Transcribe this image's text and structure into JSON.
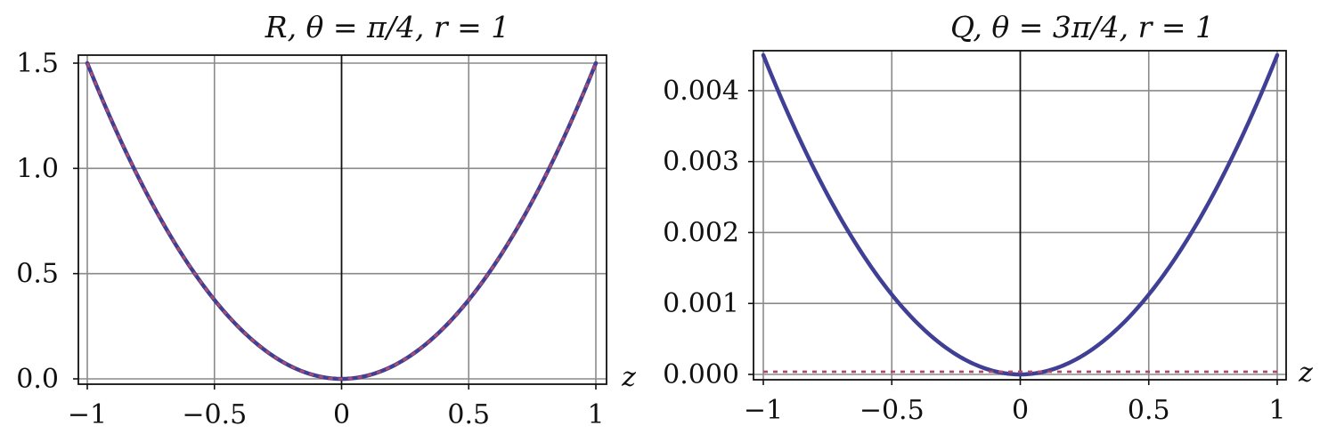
{
  "chart_data": [
    {
      "type": "line",
      "title": "R, θ = π/4, r = 1",
      "xlabel": "z",
      "ylabel": "",
      "xlim": [
        -1,
        1
      ],
      "ylim": [
        0,
        1.5
      ],
      "x_ticks": [
        -1,
        -0.5,
        0,
        0.5,
        1
      ],
      "x_tick_labels": [
        "−1",
        "−0.5",
        "0",
        "0.5",
        "1"
      ],
      "y_ticks": [
        0,
        0.5,
        1.0,
        1.5
      ],
      "y_tick_labels": [
        "0.0",
        "0.5",
        "1.0",
        "1.5"
      ],
      "grid": true,
      "series": [
        {
          "style": "solid",
          "color": "#3f3f95",
          "x": [
            -1,
            -0.75,
            -0.5,
            -0.25,
            0,
            0.25,
            0.5,
            0.75,
            1
          ],
          "y": [
            1.5,
            0.84,
            0.37,
            0.09,
            0,
            0.09,
            0.37,
            0.84,
            1.5
          ]
        },
        {
          "style": "dashed",
          "color": "#b04c6a",
          "x": [
            -1,
            -0.75,
            -0.5,
            -0.25,
            0,
            0.25,
            0.5,
            0.75,
            1
          ],
          "y": [
            1.5,
            0.84,
            0.37,
            0.09,
            0,
            0.09,
            0.37,
            0.84,
            1.5
          ]
        }
      ]
    },
    {
      "type": "line",
      "title": "Q, θ = 3π/4, r = 1",
      "xlabel": "z",
      "ylabel": "",
      "xlim": [
        -1,
        1
      ],
      "ylim": [
        0,
        0.0045
      ],
      "x_ticks": [
        -1,
        -0.5,
        0,
        0.5,
        1
      ],
      "x_tick_labels": [
        "−1",
        "−0.5",
        "0",
        "0.5",
        "1"
      ],
      "y_ticks": [
        0,
        0.001,
        0.002,
        0.003,
        0.004
      ],
      "y_tick_labels": [
        "0.000",
        "0.001",
        "0.002",
        "0.003",
        "0.004"
      ],
      "grid": true,
      "series": [
        {
          "style": "solid",
          "color": "#3f3f95",
          "x": [
            -1,
            -0.75,
            -0.5,
            -0.25,
            0,
            0.25,
            0.5,
            0.75,
            1
          ],
          "y": [
            0.0045,
            0.00253,
            0.00112,
            0.00028,
            0,
            0.00028,
            0.00112,
            0.00253,
            0.0045
          ]
        },
        {
          "style": "dashed",
          "color": "#b04c6a",
          "x": [
            -1,
            1
          ],
          "y": [
            0,
            0
          ]
        }
      ]
    }
  ]
}
